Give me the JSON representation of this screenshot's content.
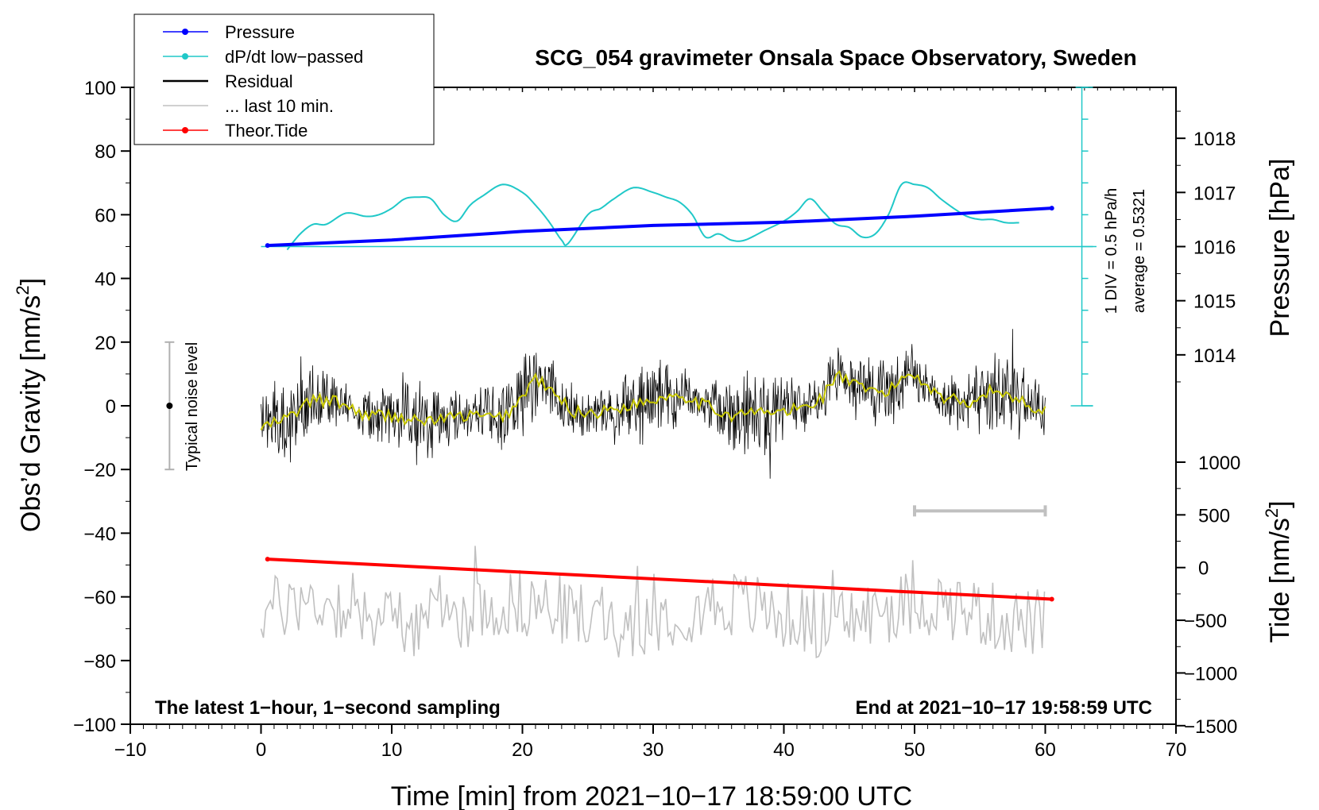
{
  "chart_data": {
    "type": "line",
    "title": "SCG_054 gravimeter Onsala Space Observatory, Sweden",
    "xlabel": "Time [min] from 2021−10−17 18:59:00 UTC",
    "ylabel_left": "Obs’d Gravity [nm/s",
    "ylabel_left_sup": "2",
    "ylabel_left_close": "]",
    "ylabel_pressure": "Pressure [hPa]",
    "ylabel_tide": "Tide [nm/s",
    "ylabel_tide_sup": "2",
    "ylabel_tide_close": "]",
    "xlim": [
      -10,
      70
    ],
    "ylim": [
      -100,
      100
    ],
    "x_ticks": [
      -10,
      0,
      10,
      20,
      30,
      40,
      50,
      60,
      70
    ],
    "x_tick_labels": [
      "−10",
      "0",
      "10",
      "20",
      "30",
      "40",
      "50",
      "60",
      "70"
    ],
    "y_ticks": [
      100,
      80,
      60,
      40,
      20,
      0,
      -20,
      -40,
      -60,
      -80,
      -100
    ],
    "y_tick_labels": [
      "100",
      "80",
      "60",
      "40",
      "20",
      "0",
      "−20",
      "−40",
      "−60",
      "−80",
      "−100"
    ],
    "pressure_ticks": [
      1018,
      1017,
      1016,
      1015,
      1014
    ],
    "pressure_tick_labels": [
      "1018",
      "1017",
      "1016",
      "1015",
      "1014"
    ],
    "tide_ticks": [
      1000,
      500,
      0,
      -500,
      -1000,
      -1500
    ],
    "tide_tick_labels": [
      "1000",
      "500",
      "0",
      "−500",
      "−1000",
      "−1500"
    ],
    "pressure_map": {
      "p1": 1016,
      "g1": 50,
      "p2": 1017,
      "g2": 67
    },
    "tide_map": {
      "t1": 0,
      "g1": -50.8,
      "t2": 1000,
      "g2": -17.7
    },
    "legend": [
      {
        "label": "Pressure",
        "color": "#0000ff",
        "marker": true
      },
      {
        "label": "dP/dt low−passed",
        "color": "#20c8c8",
        "marker": true
      },
      {
        "label": "Residual",
        "color": "#000000",
        "marker": false
      },
      {
        "label": "... last 10 min.",
        "color": "#c0c0c0",
        "marker": false
      },
      {
        "label": "Theor.Tide",
        "color": "#ff0000",
        "marker": true
      }
    ],
    "colors": {
      "pressure": "#0000ff",
      "dpdt": "#20c8c8",
      "residual": "#000000",
      "residual_smooth": "#c8c800",
      "last10": "#c0c0c0",
      "tide": "#ff0000",
      "noise_bar": "#b0b0b0"
    },
    "series": [
      {
        "name": "Pressure",
        "unit": "hPa",
        "x": [
          0.5,
          10,
          20,
          30,
          40,
          50,
          60.5
        ],
        "y": [
          1016.02,
          1016.12,
          1016.28,
          1016.39,
          1016.45,
          1016.56,
          1016.71
        ]
      },
      {
        "name": "dP/dt low-passed",
        "unit": "gravity-axis units",
        "x": [
          2,
          3,
          4,
          5,
          6.5,
          8,
          9,
          10,
          11,
          12,
          13,
          14,
          15,
          16,
          17,
          18.5,
          20,
          21,
          22,
          23,
          23.5,
          25,
          26,
          27,
          28.5,
          30,
          31,
          32,
          33,
          34,
          35,
          36,
          37,
          38.5,
          40,
          41,
          42,
          43,
          44,
          45,
          46,
          47,
          48,
          49,
          50,
          51,
          52,
          53,
          54,
          55,
          56,
          57,
          58
        ],
        "y": [
          49,
          54,
          57,
          57,
          60.5,
          59.5,
          60,
          62,
          65,
          65.5,
          65,
          60,
          58,
          63,
          66,
          69.5,
          67,
          63,
          58,
          52,
          51,
          60,
          62,
          65,
          68.5,
          67,
          65.5,
          64,
          60,
          53,
          54,
          52,
          52,
          55,
          58,
          61,
          65,
          61,
          57,
          56,
          53,
          54,
          60,
          69.5,
          69.5,
          68.5,
          65,
          62,
          59.5,
          58.5,
          58.5,
          57.5,
          57.5
        ]
      },
      {
        "name": "Residual (smoothed)",
        "unit": "nm/s2",
        "x": [
          0,
          2,
          4,
          6,
          8,
          10,
          12,
          14,
          16,
          18,
          19,
          20,
          21,
          22,
          24,
          26,
          28,
          30,
          32,
          34,
          36,
          38,
          40,
          42,
          43,
          44,
          46,
          48,
          49,
          50,
          52,
          54,
          56,
          58,
          60
        ],
        "y": [
          -7,
          -4,
          2,
          1,
          -3,
          -3,
          -5,
          -4,
          -3,
          -4,
          -2,
          3,
          9,
          5,
          -2,
          -2,
          0,
          2,
          4,
          0,
          -3,
          -2,
          -2,
          0,
          3,
          10,
          5,
          4,
          9,
          10,
          3,
          1,
          5,
          2,
          -2
        ]
      },
      {
        "name": "Theor.Tide",
        "unit": "nm/s2",
        "x": [
          0.5,
          60.5
        ],
        "y": [
          80,
          -300
        ]
      }
    ],
    "noise_level": {
      "x": -7,
      "center": 0,
      "half_range": 20,
      "label": "Typical noise level"
    },
    "last10_bar": {
      "x_start": 50,
      "x_end": 60,
      "level": -33
    },
    "dpdt_scale": {
      "label_div": "1 DIV = 0.5 hPa/h",
      "label_avg": "average = 0.5321",
      "x": 62.8
    },
    "note_left": "The latest 1−hour, 1−second sampling",
    "note_right": "End at 2021−10−17 19:58:59 UTC"
  }
}
